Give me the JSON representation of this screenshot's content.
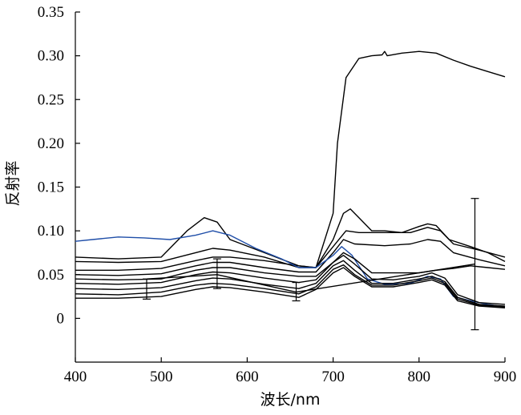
{
  "chart_data": {
    "type": "line",
    "title": "",
    "xlabel": "波长/nm",
    "ylabel": "反射率",
    "xlim": [
      400,
      900
    ],
    "ylim": [
      -0.05,
      0.35
    ],
    "xticks": [
      400,
      500,
      600,
      700,
      800,
      900
    ],
    "xtick_labels": [
      "400",
      "500",
      "600",
      "700",
      "800",
      "900"
    ],
    "yticks": [
      0,
      0.05,
      0.1,
      0.15,
      0.2,
      0.25,
      0.3,
      0.35
    ],
    "ytick_labels": [
      "0",
      "0.05",
      "0.10",
      "0.15",
      "0.20",
      "0.25",
      "0.30",
      "0.35"
    ],
    "grid": false,
    "series": [
      {
        "color": "#000000",
        "points": [
          [
            400,
            0.07
          ],
          [
            450,
            0.068
          ],
          [
            500,
            0.07
          ],
          [
            530,
            0.1
          ],
          [
            550,
            0.115
          ],
          [
            565,
            0.11
          ],
          [
            580,
            0.09
          ],
          [
            620,
            0.075
          ],
          [
            660,
            0.06
          ],
          [
            680,
            0.058
          ],
          [
            700,
            0.12
          ],
          [
            705,
            0.2
          ],
          [
            715,
            0.275
          ],
          [
            730,
            0.297
          ],
          [
            745,
            0.3
          ],
          [
            757,
            0.301
          ],
          [
            760,
            0.305
          ],
          [
            763,
            0.3
          ],
          [
            780,
            0.303
          ],
          [
            800,
            0.305
          ],
          [
            820,
            0.303
          ],
          [
            840,
            0.295
          ],
          [
            860,
            0.288
          ],
          [
            880,
            0.282
          ],
          [
            900,
            0.276
          ]
        ]
      },
      {
        "color": "#000000",
        "points": [
          [
            400,
            0.055
          ],
          [
            450,
            0.055
          ],
          [
            500,
            0.057
          ],
          [
            540,
            0.066
          ],
          [
            560,
            0.07
          ],
          [
            580,
            0.07
          ],
          [
            620,
            0.066
          ],
          [
            660,
            0.06
          ],
          [
            680,
            0.058
          ],
          [
            700,
            0.09
          ],
          [
            712,
            0.12
          ],
          [
            720,
            0.125
          ],
          [
            730,
            0.115
          ],
          [
            745,
            0.1
          ],
          [
            760,
            0.1
          ],
          [
            780,
            0.098
          ],
          [
            800,
            0.105
          ],
          [
            810,
            0.108
          ],
          [
            820,
            0.106
          ],
          [
            835,
            0.09
          ],
          [
            860,
            0.082
          ],
          [
            880,
            0.075
          ],
          [
            900,
            0.065
          ]
        ]
      },
      {
        "color": "#000000",
        "points": [
          [
            400,
            0.065
          ],
          [
            450,
            0.064
          ],
          [
            500,
            0.065
          ],
          [
            540,
            0.075
          ],
          [
            560,
            0.08
          ],
          [
            580,
            0.078
          ],
          [
            620,
            0.07
          ],
          [
            660,
            0.058
          ],
          [
            680,
            0.058
          ],
          [
            700,
            0.082
          ],
          [
            715,
            0.1
          ],
          [
            730,
            0.098
          ],
          [
            760,
            0.098
          ],
          [
            790,
            0.098
          ],
          [
            810,
            0.104
          ],
          [
            825,
            0.1
          ],
          [
            840,
            0.085
          ],
          [
            870,
            0.078
          ],
          [
            900,
            0.07
          ]
        ]
      },
      {
        "color": "#000000",
        "points": [
          [
            400,
            0.05
          ],
          [
            450,
            0.049
          ],
          [
            500,
            0.051
          ],
          [
            540,
            0.06
          ],
          [
            560,
            0.064
          ],
          [
            580,
            0.064
          ],
          [
            620,
            0.058
          ],
          [
            660,
            0.053
          ],
          [
            680,
            0.053
          ],
          [
            700,
            0.075
          ],
          [
            712,
            0.09
          ],
          [
            725,
            0.085
          ],
          [
            760,
            0.083
          ],
          [
            790,
            0.085
          ],
          [
            810,
            0.09
          ],
          [
            825,
            0.088
          ],
          [
            840,
            0.075
          ],
          [
            870,
            0.067
          ],
          [
            900,
            0.06
          ]
        ]
      },
      {
        "color": "#1f4ea8",
        "points": [
          [
            400,
            0.088
          ],
          [
            420,
            0.09
          ],
          [
            450,
            0.093
          ],
          [
            480,
            0.092
          ],
          [
            510,
            0.09
          ],
          [
            540,
            0.095
          ],
          [
            560,
            0.1
          ],
          [
            580,
            0.095
          ],
          [
            610,
            0.08
          ],
          [
            640,
            0.068
          ],
          [
            660,
            0.058
          ],
          [
            680,
            0.058
          ],
          [
            700,
            0.072
          ],
          [
            710,
            0.082
          ],
          [
            722,
            0.072
          ],
          [
            740,
            0.045
          ],
          [
            760,
            0.039
          ],
          [
            790,
            0.04
          ],
          [
            810,
            0.048
          ],
          [
            825,
            0.045
          ],
          [
            840,
            0.025
          ],
          [
            860,
            0.02
          ],
          [
            880,
            0.016
          ],
          [
            900,
            0.013
          ]
        ]
      },
      {
        "color": "#000000",
        "points": [
          [
            400,
            0.045
          ],
          [
            450,
            0.044
          ],
          [
            500,
            0.045
          ],
          [
            540,
            0.055
          ],
          [
            560,
            0.058
          ],
          [
            580,
            0.058
          ],
          [
            620,
            0.052
          ],
          [
            660,
            0.048
          ],
          [
            680,
            0.048
          ],
          [
            700,
            0.064
          ],
          [
            712,
            0.075
          ],
          [
            725,
            0.068
          ],
          [
            745,
            0.052
          ],
          [
            770,
            0.052
          ],
          [
            800,
            0.052
          ],
          [
            820,
            0.055
          ],
          [
            840,
            0.057
          ],
          [
            860,
            0.06
          ],
          [
            880,
            0.058
          ],
          [
            900,
            0.056
          ]
        ]
      },
      {
        "color": "#000000",
        "points": [
          [
            400,
            0.04
          ],
          [
            450,
            0.039
          ],
          [
            500,
            0.041
          ],
          [
            540,
            0.05
          ],
          [
            560,
            0.053
          ],
          [
            580,
            0.052
          ],
          [
            620,
            0.046
          ],
          [
            660,
            0.041
          ],
          [
            680,
            0.044
          ],
          [
            700,
            0.064
          ],
          [
            712,
            0.072
          ],
          [
            725,
            0.062
          ],
          [
            745,
            0.045
          ],
          [
            770,
            0.044
          ],
          [
            800,
            0.048
          ],
          [
            815,
            0.052
          ],
          [
            830,
            0.046
          ],
          [
            845,
            0.027
          ],
          [
            870,
            0.018
          ],
          [
            900,
            0.016
          ]
        ]
      },
      {
        "color": "#000000",
        "points": [
          [
            400,
            0.034
          ],
          [
            450,
            0.033
          ],
          [
            500,
            0.035
          ],
          [
            540,
            0.043
          ],
          [
            560,
            0.046
          ],
          [
            580,
            0.045
          ],
          [
            620,
            0.039
          ],
          [
            660,
            0.034
          ],
          [
            680,
            0.04
          ],
          [
            700,
            0.06
          ],
          [
            712,
            0.066
          ],
          [
            725,
            0.055
          ],
          [
            745,
            0.04
          ],
          [
            770,
            0.04
          ],
          [
            800,
            0.045
          ],
          [
            815,
            0.048
          ],
          [
            830,
            0.042
          ],
          [
            845,
            0.024
          ],
          [
            870,
            0.016
          ],
          [
            900,
            0.014
          ]
        ]
      },
      {
        "color": "#000000",
        "points": [
          [
            400,
            0.028
          ],
          [
            450,
            0.027
          ],
          [
            500,
            0.03
          ],
          [
            540,
            0.038
          ],
          [
            560,
            0.04
          ],
          [
            580,
            0.039
          ],
          [
            620,
            0.034
          ],
          [
            660,
            0.028
          ],
          [
            680,
            0.036
          ],
          [
            700,
            0.056
          ],
          [
            712,
            0.061
          ],
          [
            725,
            0.05
          ],
          [
            745,
            0.038
          ],
          [
            770,
            0.038
          ],
          [
            800,
            0.043
          ],
          [
            815,
            0.046
          ],
          [
            830,
            0.04
          ],
          [
            845,
            0.022
          ],
          [
            870,
            0.015
          ],
          [
            900,
            0.013
          ]
        ]
      },
      {
        "color": "#000000",
        "points": [
          [
            400,
            0.023
          ],
          [
            450,
            0.023
          ],
          [
            500,
            0.025
          ],
          [
            540,
            0.033
          ],
          [
            560,
            0.036
          ],
          [
            580,
            0.035
          ],
          [
            620,
            0.03
          ],
          [
            660,
            0.024
          ],
          [
            680,
            0.033
          ],
          [
            700,
            0.052
          ],
          [
            712,
            0.058
          ],
          [
            725,
            0.048
          ],
          [
            745,
            0.036
          ],
          [
            770,
            0.036
          ],
          [
            800,
            0.041
          ],
          [
            815,
            0.044
          ],
          [
            830,
            0.038
          ],
          [
            845,
            0.02
          ],
          [
            870,
            0.014
          ],
          [
            900,
            0.012
          ]
        ]
      },
      {
        "color": "#000000",
        "points": [
          [
            483,
            0.045
          ],
          [
            565,
            0.05
          ],
          [
            657,
            0.03
          ],
          [
            865,
            0.062
          ]
        ]
      }
    ],
    "error_bars": [
      {
        "x": 483,
        "low": 0.022,
        "high": 0.045
      },
      {
        "x": 565,
        "low": 0.034,
        "high": 0.068
      },
      {
        "x": 657,
        "low": 0.02,
        "high": 0.041
      },
      {
        "x": 865,
        "low": -0.013,
        "high": 0.137
      }
    ]
  }
}
